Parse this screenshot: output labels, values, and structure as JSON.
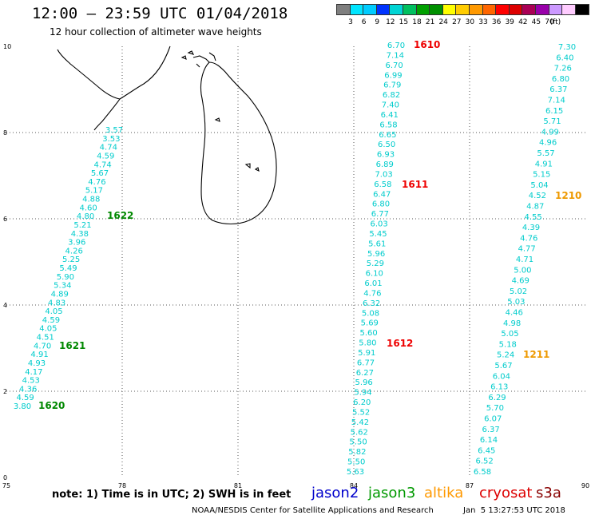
{
  "header": {
    "title": "12:00 – 23:59 UTC 01/04/2018",
    "subtitle": "12 hour collection of altimeter wave heights"
  },
  "colorbar": {
    "colors": [
      "#7f7f7f",
      "#00e5ff",
      "#00ccff",
      "#0033ff",
      "#00d4d4",
      "#00c060",
      "#00a000",
      "#009000",
      "#ffff00",
      "#ffcc00",
      "#ff9900",
      "#ff6600",
      "#ff0000",
      "#dd0000",
      "#aa0055",
      "#9900aa",
      "#cc99ff",
      "#ffccff",
      "#000000"
    ],
    "labels": [
      "3",
      "6",
      "9",
      "12",
      "15",
      "18",
      "21",
      "24",
      "27",
      "30",
      "33",
      "36",
      "39",
      "42",
      "45",
      "70"
    ],
    "unit": "(ft)"
  },
  "axes": {
    "x_ticks": [
      "75",
      "78",
      "81",
      "84",
      "87",
      "90"
    ],
    "y_ticks": [
      "0",
      "2",
      "4",
      "6",
      "8",
      "10"
    ]
  },
  "tracks": [
    {
      "id": "track-1",
      "color": "#00cccc",
      "values": [
        "3.57",
        "3.53",
        "4.74",
        "4.59",
        "4.74",
        "5.67",
        "4.76",
        "5.17",
        "4.88",
        "4.60",
        "4.80",
        "5.21",
        "4.38",
        "3.96",
        "4.26",
        "5.25",
        "5.49",
        "5.90",
        "5.34",
        "4.89",
        "4.83",
        "4.05",
        "4.59",
        "4.05",
        "4.51",
        "4.70",
        "4.91",
        "4.93",
        "4.17",
        "4.53",
        "4.36",
        "4.59",
        "3.80"
      ],
      "time_labels": [
        {
          "text": "1622",
          "color": "#008800"
        },
        {
          "text": "1621",
          "color": "#008800"
        },
        {
          "text": "1620",
          "color": "#008800"
        }
      ]
    },
    {
      "id": "track-2",
      "color": "#00cccc",
      "values": [
        "6.70",
        "7.14",
        "6.70",
        "6.99",
        "6.79",
        "6.82",
        "7.40",
        "6.41",
        "6.58",
        "6.65",
        "6.50",
        "6.93",
        "6.89",
        "7.03",
        "6.58",
        "6.47",
        "6.80",
        "6.77",
        "6.03",
        "5.45",
        "5.61",
        "5.96",
        "5.29",
        "6.10",
        "6.01",
        "4.76",
        "6.32",
        "5.08",
        "5.69",
        "5.60",
        "5.80",
        "5.91",
        "6.77",
        "6.27",
        "5.96",
        "5.94",
        "6.20",
        "5.52",
        "5.42",
        "5.62",
        "5.50",
        "5.82",
        "5.50",
        "5.63"
      ],
      "time_labels": [
        {
          "text": "1610",
          "color": "#ee0000"
        },
        {
          "text": "1611",
          "color": "#ee0000"
        },
        {
          "text": "1612",
          "color": "#ee0000"
        }
      ]
    },
    {
      "id": "track-3",
      "color": "#00cccc",
      "values": [
        "7.30",
        "6.40",
        "7.26",
        "6.80",
        "6.37",
        "7.14",
        "6.15",
        "5.71",
        "4.99",
        "4.96",
        "5.57",
        "4.91",
        "5.15",
        "5.04",
        "4.52",
        "4.87",
        "4.55",
        "4.39",
        "4.76",
        "4.77",
        "4.71",
        "5.00",
        "4.69",
        "5.02",
        "5.03",
        "4.46",
        "4.98",
        "5.05",
        "5.18",
        "5.24",
        "5.67",
        "6.04",
        "6.13",
        "6.29",
        "5.70",
        "6.07",
        "6.37",
        "6.14",
        "6.45",
        "6.52",
        "6.58"
      ],
      "time_labels": [
        {
          "text": "1210",
          "color": "#ee9900"
        },
        {
          "text": "1211",
          "color": "#ee9900"
        }
      ]
    }
  ],
  "footer": {
    "note": "note:  1) Time is in UTC;  2) SWH is in feet",
    "satellites": [
      {
        "name": "jason2",
        "color": "#0000cc"
      },
      {
        "name": "jason3",
        "color": "#009900"
      },
      {
        "name": "altika",
        "color": "#ff9900"
      },
      {
        "name": "cryosat",
        "color": "#dd0000"
      },
      {
        "name": "s3a",
        "color": "#880000"
      }
    ],
    "credit": "NOAA/NESDIS Center for Satellite Applications and Research",
    "timestamp": "Jan  5 13:27:53 UTC 2018"
  }
}
